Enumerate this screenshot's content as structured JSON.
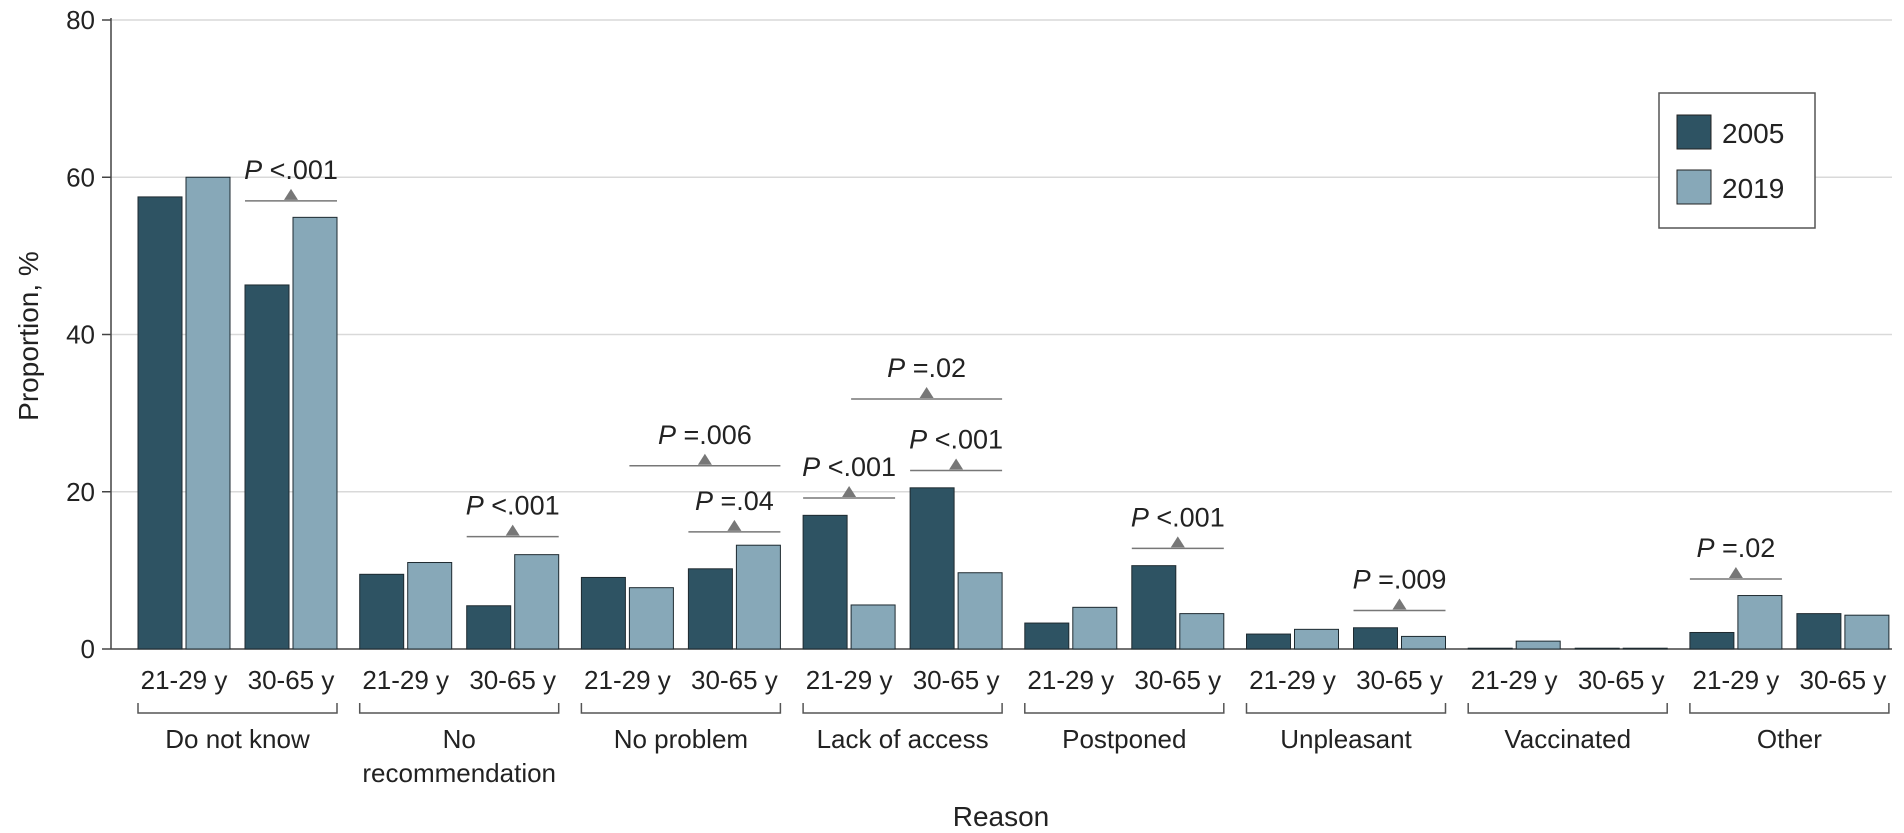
{
  "chart_data": {
    "type": "bar",
    "xlabel": "Reason",
    "ylabel": "Proportion, %",
    "ylim": [
      0,
      80
    ],
    "yticks": [
      0,
      20,
      40,
      60,
      80
    ],
    "grid": true,
    "legend_position": "top-right",
    "colors": {
      "2005": "#2e5363",
      "2019": "#87a8b8",
      "grid": "#d9d9d9",
      "annotation": "#777777"
    },
    "series": [
      {
        "name": "2005",
        "values": [
          57.5,
          46.3,
          9.5,
          5.5,
          9.1,
          10.2,
          17.0,
          20.5,
          3.3,
          10.6,
          1.9,
          2.7,
          0.1,
          0.1,
          2.1,
          4.5
        ]
      },
      {
        "name": "2019",
        "values": [
          60.0,
          54.9,
          11.0,
          12.0,
          7.8,
          13.2,
          5.6,
          9.7,
          5.3,
          4.5,
          2.5,
          1.6,
          1.0,
          0.1,
          6.8,
          4.3
        ]
      }
    ],
    "groups": [
      {
        "label": "Do not know",
        "ages": [
          "21-29 y",
          "30-65 y"
        ]
      },
      {
        "label": "No\nrecommendation",
        "ages": [
          "21-29 y",
          "30-65 y"
        ]
      },
      {
        "label": "No problem",
        "ages": [
          "21-29 y",
          "30-65 y"
        ]
      },
      {
        "label": "Lack of access",
        "ages": [
          "21-29 y",
          "30-65 y"
        ]
      },
      {
        "label": "Postponed",
        "ages": [
          "21-29 y",
          "30-65 y"
        ]
      },
      {
        "label": "Unpleasant",
        "ages": [
          "21-29 y",
          "30-65 y"
        ]
      },
      {
        "label": "Vaccinated",
        "ages": [
          "21-29 y",
          "30-65 y"
        ]
      },
      {
        "label": "Other",
        "ages": [
          "21-29 y",
          "30-65 y"
        ]
      }
    ],
    "annotations": [
      {
        "group": 0,
        "span": "30-65 y",
        "p": "P",
        "text": " <.001",
        "y": 57
      },
      {
        "group": 1,
        "span": "30-65 y",
        "p": "P",
        "text": " <.001",
        "y": 14.3
      },
      {
        "group": 2,
        "span": "30-65 y",
        "p": "P",
        "text": " =.04",
        "y": 14.9
      },
      {
        "group": 2,
        "span": "both",
        "p": "P",
        "text": " =.006",
        "y": 23.3
      },
      {
        "group": 3,
        "span": "21-29 y",
        "p": "P",
        "text": " <.001",
        "y": 19.2
      },
      {
        "group": 3,
        "span": "30-65 y",
        "p": "P",
        "text": " <.001",
        "y": 22.7
      },
      {
        "group": 3,
        "span": "both",
        "p": "P",
        "text": " =.02",
        "y": 31.8
      },
      {
        "group": 4,
        "span": "30-65 y",
        "p": "P",
        "text": " <.001",
        "y": 12.8
      },
      {
        "group": 5,
        "span": "30-65 y",
        "p": "P",
        "text": " =.009",
        "y": 4.9
      },
      {
        "group": 7,
        "span": "21-29 y",
        "p": "P",
        "text": " =.02",
        "y": 8.9
      }
    ]
  }
}
